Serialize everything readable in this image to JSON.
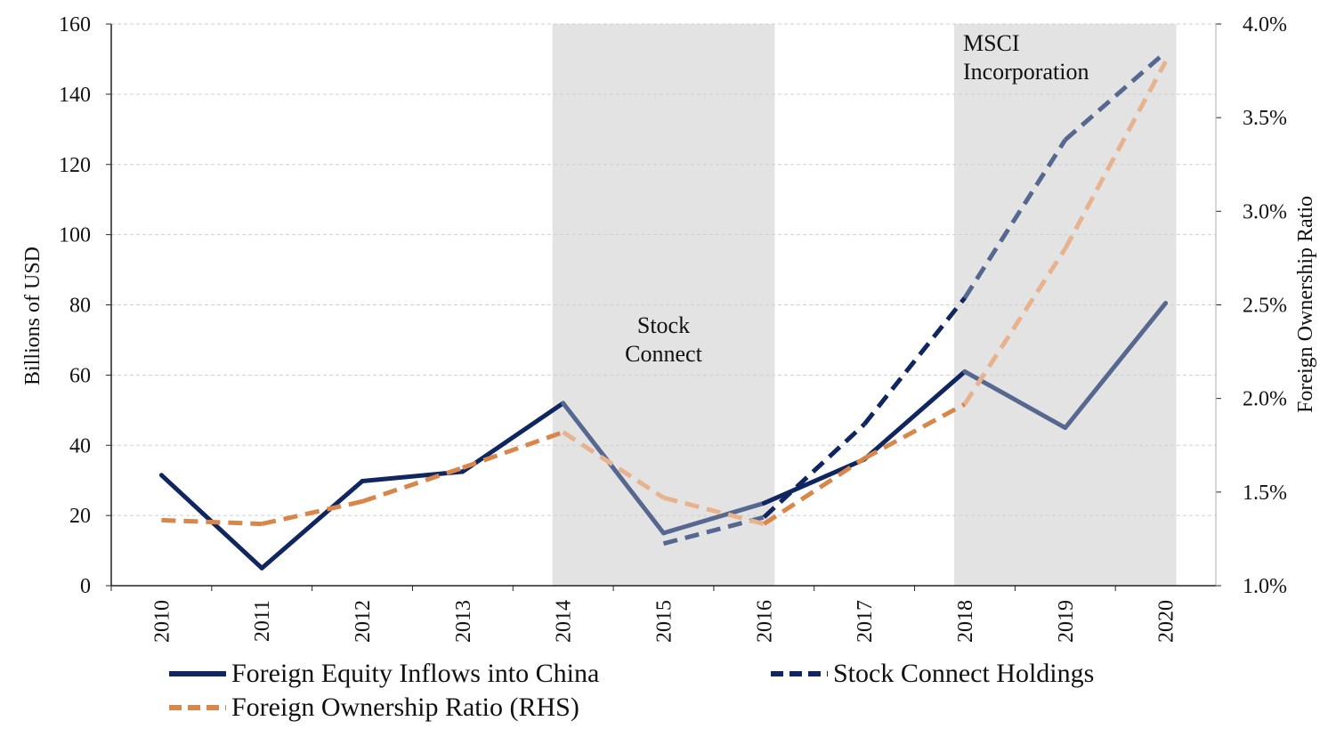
{
  "chart_data": {
    "type": "line",
    "categories": [
      "2010",
      "2011",
      "2012",
      "2013",
      "2014",
      "2015",
      "2016",
      "2017",
      "2018",
      "2019",
      "2020"
    ],
    "ylabel": "Billions of USD",
    "y2label": "Foreign Ownership Ratio",
    "ylim": [
      0,
      160
    ],
    "y2lim": [
      1.0,
      4.0
    ],
    "yticks": [
      "0",
      "20",
      "40",
      "60",
      "80",
      "100",
      "120",
      "140",
      "160"
    ],
    "y2ticks": [
      "1.0%",
      "1.5%",
      "2.0%",
      "2.5%",
      "3.0%",
      "3.5%",
      "4.0%"
    ],
    "grid": true,
    "legend_position": "bottom",
    "shaded_periods": [
      {
        "label_lines": [
          "Stock",
          "Connect"
        ],
        "from": "2014",
        "to": "2016",
        "label_anchor": "middle"
      },
      {
        "label_lines": [
          "MSCI",
          "Incorporation"
        ],
        "from": "2018",
        "to": "2020",
        "label_anchor": "top-left"
      }
    ],
    "series": [
      {
        "name": "Foreign Equity Inflows into China",
        "axis": "left",
        "style": "solid",
        "color": "#0f2660",
        "values": [
          31.5,
          5,
          29.8,
          32.5,
          52,
          15,
          23.5,
          36,
          61,
          45,
          80.5
        ]
      },
      {
        "name": "Stock Connect Holdings",
        "axis": "left",
        "style": "dashed",
        "color": "#0f2660",
        "values": [
          null,
          null,
          null,
          null,
          null,
          12,
          19.5,
          46,
          82,
          127,
          152
        ]
      },
      {
        "name": "Foreign Ownership Ratio (RHS)",
        "axis": "right",
        "style": "dashed",
        "color": "#d9864b",
        "values": [
          1.35,
          1.33,
          1.45,
          1.63,
          1.82,
          1.47,
          1.33,
          1.68,
          1.97,
          2.8,
          3.8
        ]
      }
    ]
  },
  "colors": {
    "navy": "#0f2660",
    "navy_faded": "#56688f",
    "orange": "#d9864b",
    "orange_faded": "#e7b28e",
    "shade": "#e3e3e3",
    "grid": "#cfcfcf"
  }
}
